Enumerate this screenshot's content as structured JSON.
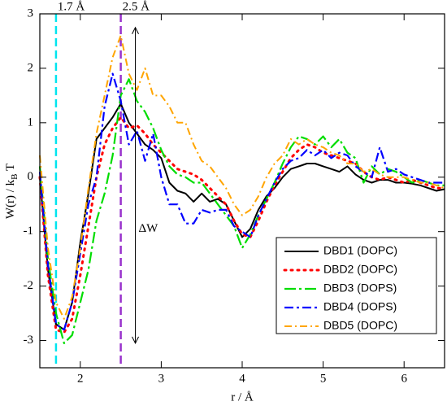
{
  "chart_data": {
    "type": "line",
    "xlabel": "r / Å",
    "ylabel": [
      "W(r) / k",
      "B",
      " T"
    ],
    "x": [
      1.5,
      1.6,
      1.7,
      1.8,
      1.9,
      2.0,
      2.1,
      2.2,
      2.3,
      2.4,
      2.5,
      2.6,
      2.7,
      2.8,
      2.9,
      3.0,
      3.1,
      3.2,
      3.3,
      3.4,
      3.5,
      3.6,
      3.7,
      3.8,
      3.9,
      4.0,
      4.1,
      4.2,
      4.3,
      4.4,
      4.5,
      4.6,
      4.7,
      4.8,
      4.9,
      5.0,
      5.1,
      5.2,
      5.3,
      5.4,
      5.5,
      5.6,
      5.7,
      5.8,
      5.9,
      6.0,
      6.1,
      6.2,
      6.3,
      6.4,
      6.5
    ],
    "series": [
      {
        "name": "DBD1 (DOPC)",
        "color": "#000000",
        "dash": "solid",
        "values": [
          0,
          -1.7,
          -2.7,
          -2.8,
          -2.3,
          -1.2,
          -0.3,
          0.7,
          0.9,
          1.1,
          1.35,
          1.0,
          0.8,
          0.6,
          0.5,
          0.35,
          -0.1,
          -0.25,
          -0.3,
          -0.45,
          -0.3,
          -0.45,
          -0.4,
          -0.5,
          -0.8,
          -1.1,
          -0.95,
          -0.6,
          -0.35,
          -0.2,
          0.0,
          0.15,
          0.2,
          0.25,
          0.25,
          0.2,
          0.15,
          0.1,
          0.2,
          0.05,
          -0.05,
          -0.1,
          -0.05,
          -0.05,
          -0.1,
          -0.1,
          -0.12,
          -0.15,
          -0.2,
          -0.25,
          -0.22
        ]
      },
      {
        "name": "DBD2 (DOPC)",
        "color": "#ff0000",
        "dash": "dotted",
        "values": [
          0,
          -1.8,
          -2.8,
          -2.85,
          -2.6,
          -1.8,
          -0.9,
          0.0,
          0.6,
          0.9,
          1.1,
          0.9,
          0.95,
          0.8,
          0.6,
          0.45,
          0.3,
          0.15,
          0.1,
          0.05,
          -0.05,
          -0.2,
          -0.35,
          -0.5,
          -0.8,
          -1.05,
          -1.1,
          -0.8,
          -0.45,
          -0.15,
          0.1,
          0.35,
          0.5,
          0.6,
          0.55,
          0.45,
          0.4,
          0.35,
          0.3,
          0.25,
          0.1,
          0.0,
          -0.05,
          0.0,
          -0.05,
          -0.1,
          -0.05,
          -0.1,
          -0.15,
          -0.2,
          -0.2
        ]
      },
      {
        "name": "DBD3 (DOPS)",
        "color": "#00dd00",
        "dash": "dashdot",
        "values": [
          0.2,
          -1.5,
          -2.5,
          -3.05,
          -2.9,
          -2.3,
          -1.7,
          -0.8,
          -0.3,
          0.4,
          1.5,
          1.8,
          1.4,
          1.2,
          0.9,
          0.5,
          0.2,
          0.05,
          0.0,
          -0.1,
          -0.1,
          -0.3,
          -0.5,
          -0.7,
          -0.9,
          -1.3,
          -1.05,
          -0.7,
          -0.4,
          -0.1,
          0.25,
          0.55,
          0.75,
          0.7,
          0.6,
          0.75,
          0.55,
          0.7,
          0.45,
          0.35,
          -0.1,
          0.2,
          0.05,
          0.15,
          0.1,
          0.0,
          -0.1,
          -0.05,
          -0.1,
          -0.15,
          -0.15
        ]
      },
      {
        "name": "DBD4 (DOPS)",
        "color": "#0000ff",
        "dash": "dashdot2",
        "values": [
          0.1,
          -1.6,
          -2.7,
          -2.8,
          -2.3,
          -1.4,
          -0.5,
          0.0,
          1.3,
          1.9,
          1.4,
          0.6,
          0.85,
          0.3,
          0.8,
          0.0,
          -0.5,
          -0.5,
          -0.85,
          -0.85,
          -0.6,
          -0.65,
          -0.6,
          -0.6,
          -0.9,
          -1.0,
          -1.1,
          -0.7,
          -0.4,
          -0.1,
          0.15,
          0.3,
          0.35,
          0.5,
          0.4,
          0.5,
          0.35,
          0.45,
          0.4,
          0.2,
          0.1,
          0.0,
          0.55,
          0.1,
          0.15,
          0.05,
          0.0,
          -0.05,
          -0.1,
          -0.1,
          -0.1
        ]
      },
      {
        "name": "DBD5 (DOPC)",
        "color": "#ffa500",
        "dash": "dashdot3",
        "values": [
          0.4,
          -1.3,
          -2.3,
          -2.6,
          -2.2,
          -1.3,
          -0.2,
          0.8,
          1.5,
          2.2,
          2.6,
          1.9,
          1.6,
          2.0,
          1.5,
          1.5,
          1.3,
          1.0,
          1.0,
          0.6,
          0.3,
          0.2,
          0.0,
          -0.2,
          -0.5,
          -0.7,
          -0.6,
          -0.35,
          0.0,
          0.25,
          0.4,
          0.7,
          0.6,
          0.7,
          0.6,
          0.55,
          0.45,
          0.4,
          0.25,
          0.25,
          0.1,
          0.15,
          0.05,
          0.0,
          0.0,
          0.0,
          -0.05,
          -0.1,
          -0.1,
          -0.15,
          -0.2
        ]
      }
    ],
    "xlim": [
      1.5,
      6.5
    ],
    "xticks": [
      2,
      3,
      4,
      5,
      6
    ],
    "ylim": [
      -3.5,
      3
    ],
    "yticks": [
      -3,
      -2,
      -1,
      0,
      1,
      2,
      3
    ],
    "legend": "lower right",
    "vlines": [
      {
        "x": 1.7,
        "label": "1.7 Å",
        "color": "#00e5ee"
      },
      {
        "x": 2.5,
        "label": "2.5 Å",
        "color": "#9932cc"
      }
    ],
    "annotation": {
      "text": "ΔW",
      "x": 2.68,
      "y1": 2.75,
      "y2": -3.05
    }
  }
}
